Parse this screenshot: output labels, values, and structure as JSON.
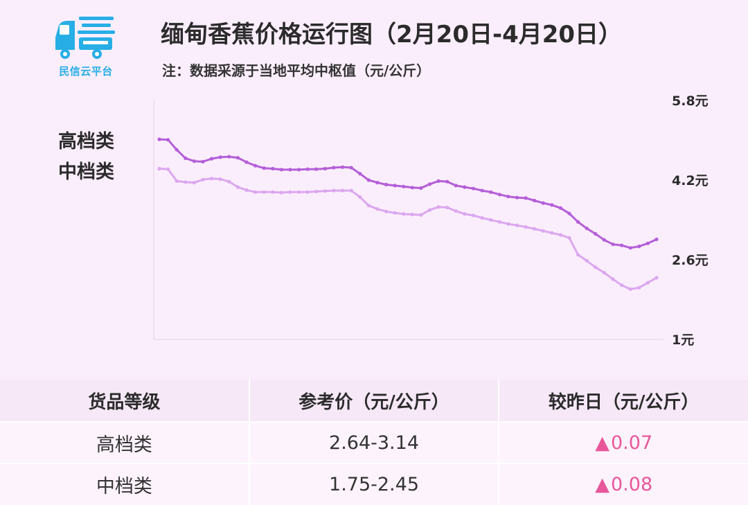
{
  "logo": {
    "text": "民信云平台"
  },
  "header": {
    "title": "缅甸香蕉价格运行图（2月20日-4月20日）",
    "subtitle": "注：数据采源于当地平均中枢值（元/公斤）"
  },
  "colors": {
    "high": "#b45ed8",
    "mid": "#dba7ef",
    "up": "#e8579a",
    "logo": "#27aee6"
  },
  "chart_data": {
    "type": "line",
    "title": "缅甸香蕉价格运行图（2月20日-4月20日）",
    "y_ticks": [
      "5.8元",
      "4.2元",
      "2.6元",
      "1元"
    ],
    "ylim": [
      1,
      5.8
    ],
    "legend_position": "left",
    "grid": false,
    "series": [
      {
        "name": "高档类",
        "values": [
          5.02,
          5.01,
          4.81,
          4.64,
          4.58,
          4.57,
          4.63,
          4.66,
          4.67,
          4.65,
          4.56,
          4.49,
          4.44,
          4.43,
          4.41,
          4.41,
          4.41,
          4.42,
          4.42,
          4.43,
          4.45,
          4.46,
          4.45,
          4.33,
          4.2,
          4.15,
          4.11,
          4.09,
          4.07,
          4.05,
          4.04,
          4.12,
          4.18,
          4.17,
          4.09,
          4.06,
          4.03,
          3.99,
          3.96,
          3.91,
          3.87,
          3.85,
          3.84,
          3.79,
          3.74,
          3.7,
          3.64,
          3.53,
          3.36,
          3.23,
          3.12,
          3.0,
          2.91,
          2.89,
          2.84,
          2.87,
          2.93,
          3.01
        ]
      },
      {
        "name": "中档类",
        "values": [
          4.43,
          4.42,
          4.18,
          4.16,
          4.15,
          4.21,
          4.23,
          4.22,
          4.17,
          4.06,
          4.0,
          3.96,
          3.96,
          3.96,
          3.95,
          3.96,
          3.96,
          3.96,
          3.97,
          3.98,
          3.99,
          3.99,
          3.99,
          3.86,
          3.69,
          3.62,
          3.57,
          3.54,
          3.52,
          3.51,
          3.5,
          3.6,
          3.66,
          3.65,
          3.58,
          3.52,
          3.49,
          3.44,
          3.4,
          3.36,
          3.32,
          3.29,
          3.26,
          3.22,
          3.18,
          3.14,
          3.1,
          3.04,
          2.7,
          2.58,
          2.45,
          2.34,
          2.21,
          2.09,
          2.01,
          2.04,
          2.14,
          2.24
        ]
      }
    ]
  },
  "table": {
    "headers": [
      "货品等级",
      "参考价（元/公斤）",
      "较昨日（元/公斤）"
    ],
    "rows": [
      {
        "grade": "高档类",
        "price": "2.64-3.14",
        "arrow": "▲",
        "change": "0.07"
      },
      {
        "grade": "中档类",
        "price": "1.75-2.45",
        "arrow": "▲",
        "change": "0.08"
      }
    ]
  }
}
